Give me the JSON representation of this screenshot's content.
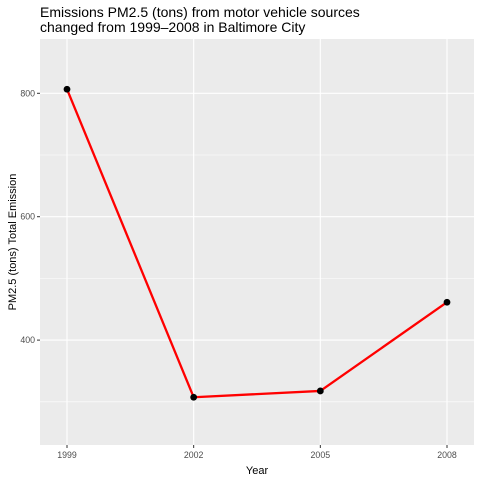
{
  "chart_data": {
    "type": "line",
    "title_lines": [
      "Emissions PM2.5 (tons) from motor vehicle sources",
      "changed from 1999–2008 in Baltimore City"
    ],
    "xlabel": "Year",
    "ylabel": "PM2.5 (tons) Total Emission",
    "categories": [
      "1999",
      "2002",
      "2005",
      "2008"
    ],
    "series": [
      {
        "name": "Total Emission",
        "values": [
          806.6,
          307.4,
          317.6,
          461.4
        ]
      }
    ],
    "ylim": [
      230,
      888
    ],
    "yticks": [
      400,
      600,
      800
    ],
    "grid": true,
    "legend": "none",
    "colors": {
      "panel": "#EBEBEB",
      "grid_major": "#FFFFFF",
      "grid_minor": "#F5F5F5",
      "line": "#FF0000",
      "point": "#000000",
      "tick": "#333333"
    }
  }
}
